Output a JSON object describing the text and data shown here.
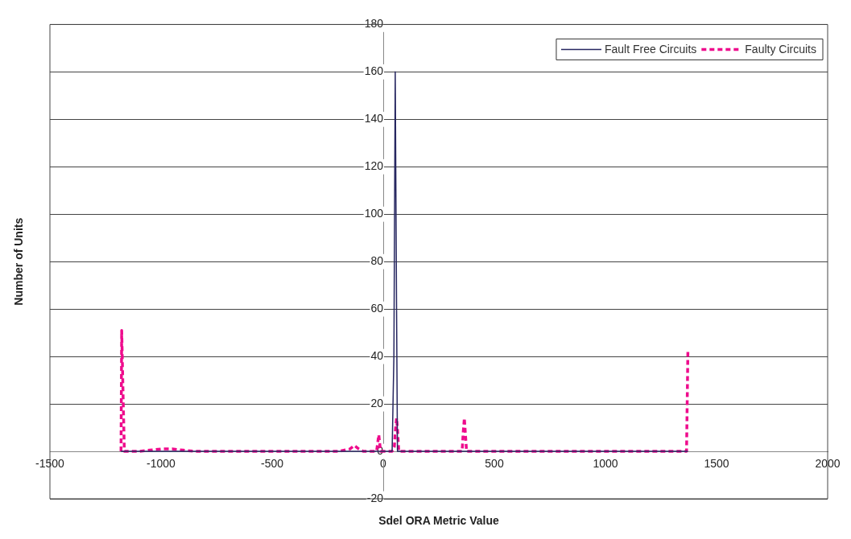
{
  "chart_data": {
    "type": "line",
    "xlabel": "Sdel ORA Metric Value",
    "ylabel": "Number of Units",
    "xlim": [
      -1500,
      2000
    ],
    "xticks": [
      -1500,
      -1000,
      -500,
      0,
      500,
      1000,
      1500,
      2000
    ],
    "ylim": [
      -20,
      180
    ],
    "yticks": [
      -20,
      0,
      20,
      40,
      60,
      80,
      100,
      120,
      140,
      160,
      180
    ],
    "grid": "y",
    "legend": "top right",
    "marker": "none",
    "series": [
      {
        "name": "Fault Free Circuits",
        "color": "#262660",
        "line_style": "solid",
        "x": [
          -1180,
          40,
          48,
          54,
          60,
          64,
          1371
        ],
        "values": [
          0,
          0,
          40,
          160,
          60,
          0,
          0
        ]
      },
      {
        "name": "Faulty Circuits",
        "color": "#ee0b8c",
        "line_style": "dashed",
        "x": [
          -1180,
          -1177,
          -1170,
          -1165,
          -1100,
          -1050,
          -1000,
          -950,
          -900,
          -850,
          -200,
          -150,
          -130,
          -110,
          -90,
          -30,
          -20,
          -12,
          40,
          50,
          55,
          60,
          65,
          70,
          355,
          360,
          365,
          370,
          375,
          1365,
          1371
        ],
        "values": [
          0,
          51,
          20,
          0,
          0,
          0.5,
          1,
          1,
          0.5,
          0,
          0,
          1,
          2.5,
          1,
          0,
          0,
          7,
          0,
          0,
          2,
          9,
          14,
          8,
          0,
          0,
          8,
          14,
          7,
          0,
          0,
          42
        ]
      }
    ]
  }
}
